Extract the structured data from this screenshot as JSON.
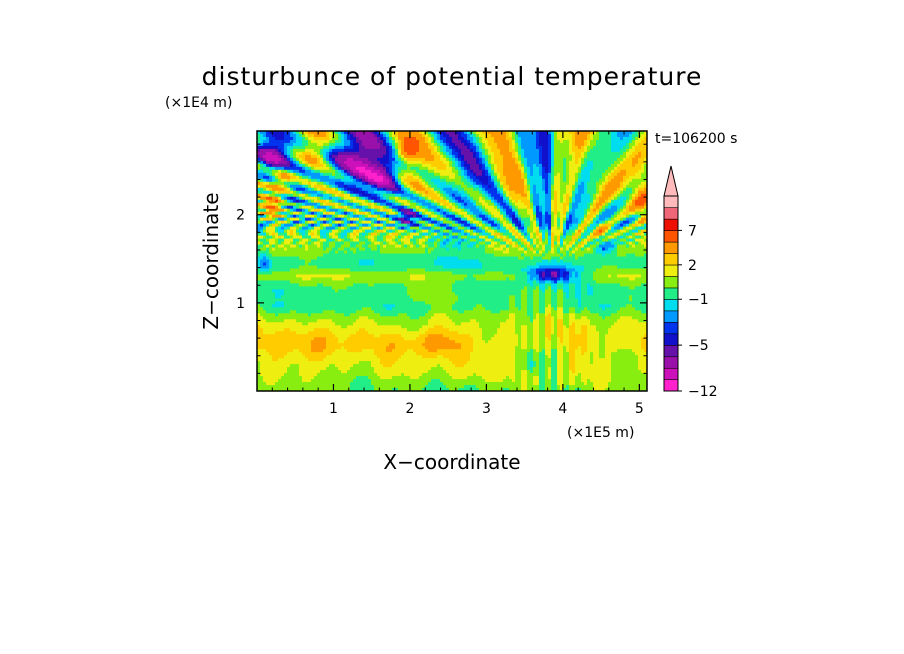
{
  "chart_data": {
    "type": "heatmap",
    "title": "disturbunce of potential temperature",
    "time_label": "t=106200 s",
    "xlabel": "X−coordinate",
    "ylabel": "Z−coordinate",
    "x_unit": "(×1E5 m)",
    "y_unit": "(×1E4 m)",
    "xlim": [
      0,
      5.1
    ],
    "ylim": [
      0,
      2.95
    ],
    "x_ticks": [
      "1",
      "2",
      "3",
      "4",
      "5"
    ],
    "y_ticks": [
      "1",
      "2"
    ],
    "colorbar": {
      "levels": [
        -12,
        -10,
        -8,
        -6,
        -5,
        -4,
        -3,
        -2,
        -1,
        0,
        1,
        2,
        3,
        5,
        7,
        9,
        11
      ],
      "colors": [
        "#ff22cc",
        "#cc11bb",
        "#9911aa",
        "#6611aa",
        "#1111cc",
        "#0033ee",
        "#0099ff",
        "#00ddee",
        "#22ee88",
        "#88ee11",
        "#eeee11",
        "#ffcc00",
        "#ff9900",
        "#ff5500",
        "#ee1100",
        "#ee6677",
        "#ffbbbb"
      ],
      "tick_labels": [
        "7",
        "2",
        "−1",
        "−5",
        "−12"
      ],
      "extend": "max"
    },
    "features": [
      {
        "x": 0.22,
        "z": 2.7,
        "amp": -5.5,
        "sx": 0.15,
        "sz": 0.14
      },
      {
        "x": 0.33,
        "z": 2.38,
        "amp": 5.5,
        "sx": 0.11,
        "sz": 0.11
      },
      {
        "x": 0.2,
        "z": 2.08,
        "amp": 4.5,
        "sx": 0.09,
        "sz": 0.1
      },
      {
        "x": 0.45,
        "z": 2.15,
        "amp": -2.2,
        "sx": 0.1,
        "sz": 0.1
      },
      {
        "x": 1.25,
        "z": 2.62,
        "amp": -6.5,
        "sx": 0.32,
        "sz": 0.22
      },
      {
        "x": 1.65,
        "z": 2.45,
        "amp": -4.5,
        "sx": 0.16,
        "sz": 0.14
      },
      {
        "x": 1.95,
        "z": 1.98,
        "amp": -5,
        "sx": 0.1,
        "sz": 0.08
      },
      {
        "x": 1.95,
        "z": 2.72,
        "amp": 5,
        "sx": 0.1,
        "sz": 0.1
      },
      {
        "x": 0.8,
        "z": 2.72,
        "amp": 2.5,
        "sx": 0.12,
        "sz": 0.12
      },
      {
        "x": 3.85,
        "z": 1.32,
        "amp": -6,
        "sx": 0.22,
        "sz": 0.06
      },
      {
        "x": 4.55,
        "z": 1.65,
        "amp": -4,
        "sx": 0.1,
        "sz": 0.09
      },
      {
        "x": 4.5,
        "z": 1.82,
        "amp": 4,
        "sx": 0.08,
        "sz": 0.08
      },
      {
        "x": 5.05,
        "z": 2.3,
        "amp": 5,
        "sx": 0.12,
        "sz": 0.3
      },
      {
        "x": 0.1,
        "z": 1.45,
        "amp": -2.5,
        "sx": 0.06,
        "sz": 0.07
      },
      {
        "x": 2.3,
        "z": 0.55,
        "amp": 2,
        "sx": 0.3,
        "sz": 0.12
      },
      {
        "x": 0.7,
        "z": 0.5,
        "amp": 1.2,
        "sx": 0.4,
        "sz": 0.15
      },
      {
        "x": 2.95,
        "z": 2.55,
        "amp": -1.8,
        "sx": 0.2,
        "sz": 0.25
      },
      {
        "x": 2.65,
        "z": 1.75,
        "amp": -2,
        "sx": 0.3,
        "sz": 0.12
      },
      {
        "x": 3.6,
        "z": 0.3,
        "amp": -2,
        "sx": 0.1,
        "sz": 0.1
      }
    ]
  }
}
